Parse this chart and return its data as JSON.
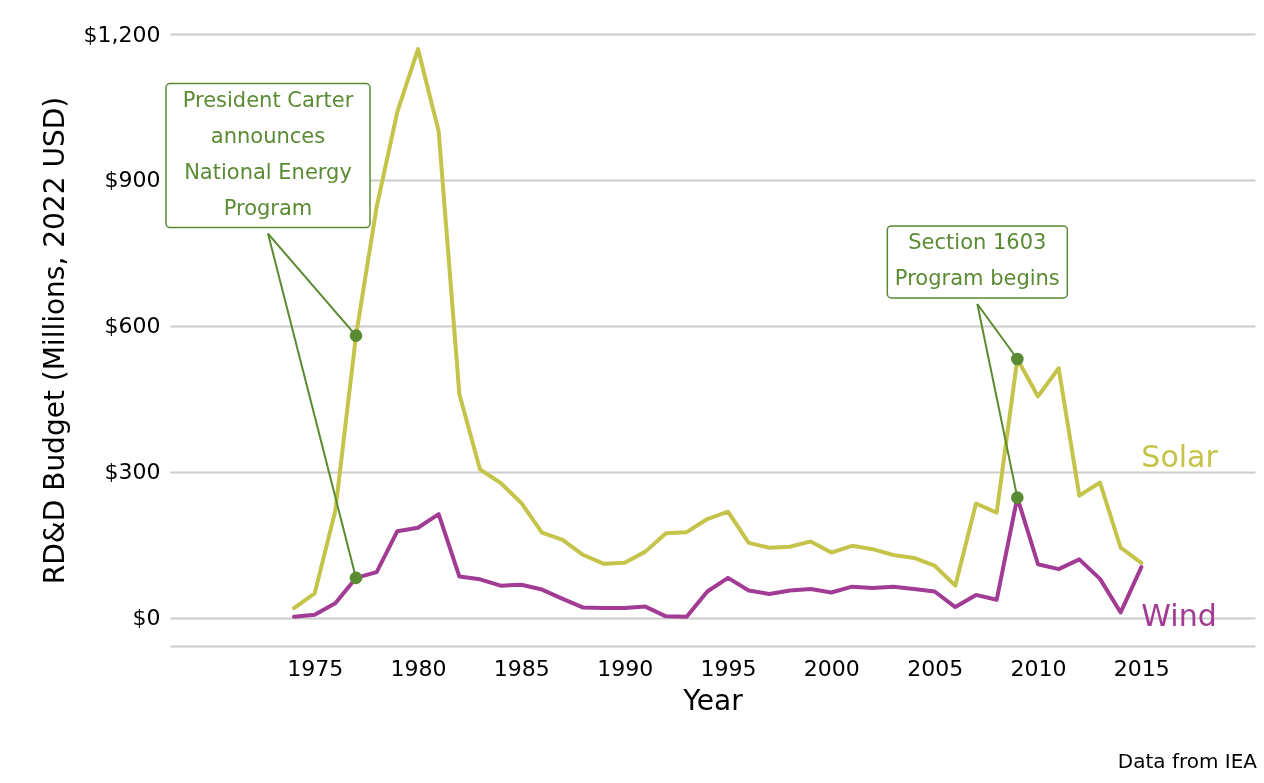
{
  "chart_data": {
    "type": "line",
    "xlabel": "Year",
    "ylabel": "RD&D Budget (Millions, 2022 USD)",
    "x": [
      1974,
      1975,
      1976,
      1977,
      1978,
      1979,
      1980,
      1981,
      1982,
      1983,
      1984,
      1985,
      1986,
      1987,
      1988,
      1989,
      1990,
      1991,
      1992,
      1993,
      1994,
      1995,
      1996,
      1997,
      1998,
      1999,
      2000,
      2001,
      2002,
      2003,
      2004,
      2005,
      2006,
      2007,
      2008,
      2009,
      2010,
      2011,
      2012,
      2013,
      2014,
      2015
    ],
    "series": [
      {
        "name": "Solar",
        "color": "#c5c44a",
        "values": [
          20,
          50,
          220,
          580,
          845,
          1040,
          1169,
          1000,
          460,
          305,
          277,
          236,
          175,
          160,
          129,
          111,
          113,
          136,
          174,
          176,
          203,
          218,
          154,
          144,
          146,
          157,
          134,
          148,
          141,
          129,
          123,
          107,
          66,
          235,
          216,
          532,
          455,
          513,
          251,
          278,
          144,
          113
        ]
      },
      {
        "name": "Wind",
        "color": "#a23b93",
        "values": [
          2,
          6,
          30,
          82,
          94,
          178,
          185,
          213,
          85,
          79,
          66,
          68,
          58,
          39,
          21,
          20,
          20,
          23,
          3,
          2,
          54,
          82,
          56,
          49,
          56,
          59,
          52,
          64,
          61,
          64,
          59,
          54,
          22,
          47,
          37,
          247,
          110,
          100,
          120,
          80,
          11,
          104
        ]
      }
    ],
    "xlim": [
      1968,
      2020.5
    ],
    "xticks": [
      1975,
      1980,
      1985,
      1990,
      1995,
      2000,
      2005,
      2010,
      2015
    ],
    "ylim": [
      -58,
      1200
    ],
    "yticks": [
      {
        "value": 0,
        "label": "$0"
      },
      {
        "value": 300,
        "label": "$300"
      },
      {
        "value": 600,
        "label": "$600"
      },
      {
        "value": 900,
        "label": "$900"
      },
      {
        "value": 1200,
        "label": "$1,200"
      }
    ],
    "grid": "y",
    "line_style": "solid",
    "annotations": [
      {
        "text": "President Carter announces National Energy Program",
        "x": 1977,
        "y": 580
      },
      {
        "text": "Section 1603 Program begins",
        "x": 2009,
        "y": 532
      },
      "Data from IEA"
    ]
  }
}
